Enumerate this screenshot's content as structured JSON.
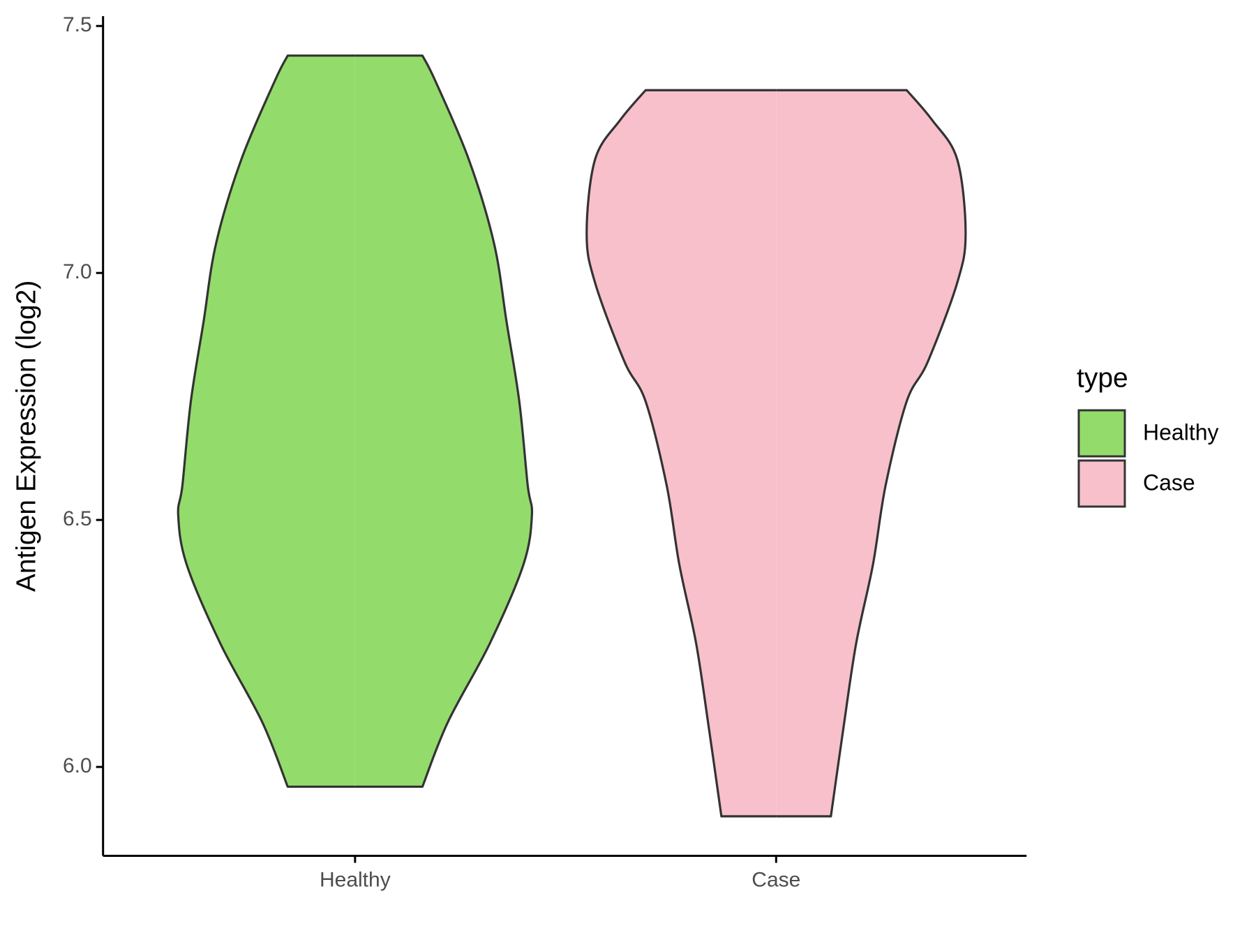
{
  "chart_data": {
    "type": "violin",
    "y_label": "Antigen Expression (log2)",
    "categories": [
      "Healthy",
      "Case"
    ],
    "legend_title": "type",
    "ylim": [
      5.82,
      7.52
    ],
    "yticks": [
      {
        "value": 6,
        "label": "6.0"
      },
      {
        "value": 6.5,
        "label": "6.5"
      },
      {
        "value": 7,
        "label": "7.0"
      },
      {
        "value": 7.5,
        "label": "7.5"
      }
    ],
    "series": [
      {
        "name": "Healthy",
        "color": "#93dc6b",
        "y": [
          7.44,
          7.39,
          7.23,
          7.06,
          6.9,
          6.74,
          6.57,
          6.51,
          6.41,
          6.25,
          6.09,
          5.96
        ],
        "half_width": [
          0.16,
          0.19,
          0.27,
          0.33,
          0.36,
          0.39,
          0.41,
          0.42,
          0.4,
          0.32,
          0.22,
          0.16
        ]
      },
      {
        "name": "Case",
        "color": "#f7c0cb",
        "y": [
          7.37,
          7.31,
          7.23,
          7.08,
          6.98,
          6.82,
          6.74,
          6.57,
          6.41,
          6.25,
          6.08,
          5.9
        ],
        "half_width": [
          0.31,
          0.37,
          0.43,
          0.45,
          0.43,
          0.36,
          0.31,
          0.26,
          0.23,
          0.19,
          0.16,
          0.13
        ]
      }
    ]
  }
}
